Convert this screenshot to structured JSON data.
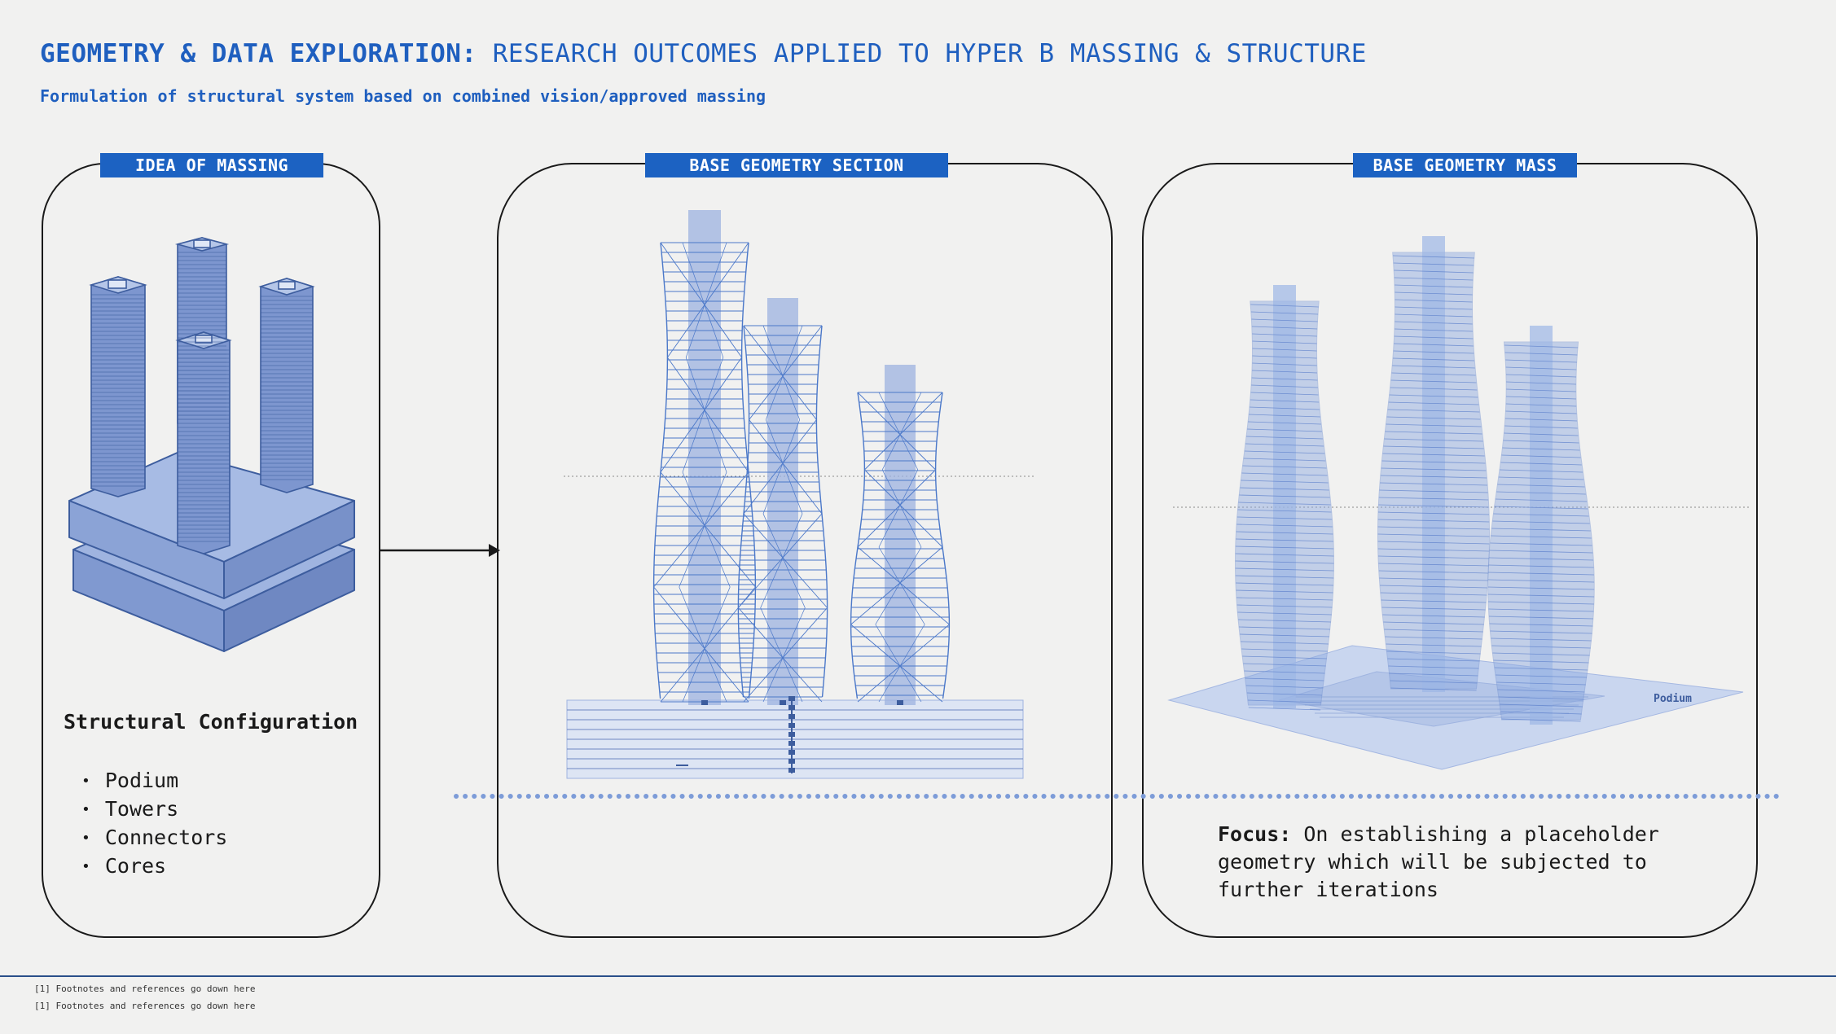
{
  "header": {
    "title_bold": "GEOMETRY & DATA EXPLORATION:",
    "title_rest": " RESEARCH OUTCOMES APPLIED TO HYPER B MASSING & STRUCTURE",
    "subtitle": "Formulation of structural system based on combined vision/approved massing"
  },
  "panels": {
    "massing": {
      "label": "IDEA OF MASSING",
      "config_title": "Structural Configuration",
      "items": [
        "Podium",
        "Towers",
        "Connectors",
        "Cores"
      ]
    },
    "section": {
      "label": "BASE GEOMETRY SECTION"
    },
    "mass": {
      "label": "BASE GEOMETRY MASS",
      "podium_label": "Podium",
      "focus_label": "Focus:",
      "focus_text": " On establishing a placeholder geometry which will be subjected to further iterations"
    }
  },
  "footnotes": [
    "[1] Footnotes and references go down here",
    "[1] Footnotes and references go down here"
  ],
  "colors": {
    "accent": "#1f5fbf",
    "label_bg": "#1c62c2",
    "massing_fill": "#8aa3d6",
    "massing_stroke": "#3d5d9e",
    "section_line": "#4b78c9",
    "dotted_line": "#7d9cd8"
  }
}
